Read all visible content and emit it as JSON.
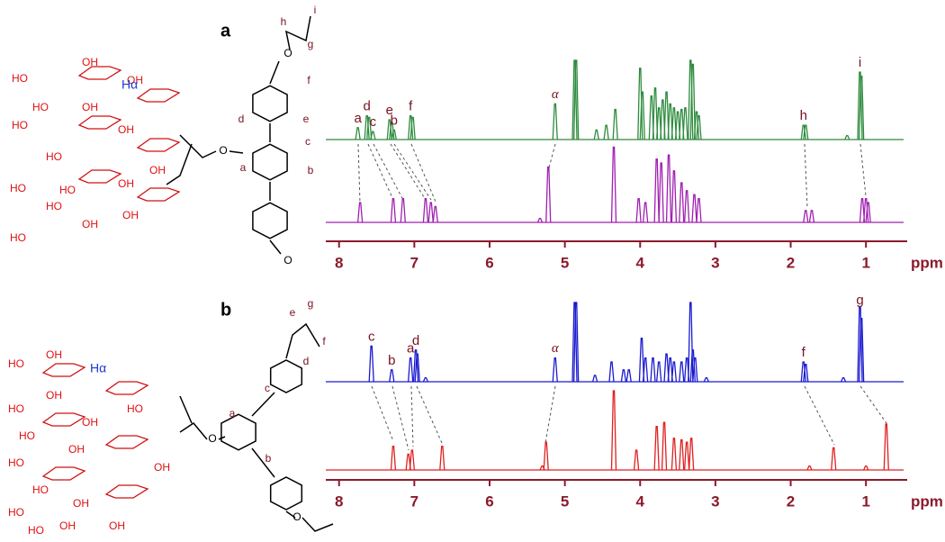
{
  "chart_data": [
    {
      "type": "spectrum",
      "panel_label": "a",
      "xlabel": "ppm",
      "xlim": [
        8.2,
        0.5
      ],
      "xticks": [
        8,
        7,
        6,
        5,
        4,
        3,
        2,
        1
      ],
      "ylim": [
        0,
        100
      ],
      "series": [
        {
          "color": "#2e8b3e",
          "x": [
            7.75,
            7.63,
            7.6,
            7.55,
            7.33,
            7.3,
            7.27,
            7.05,
            7.02,
            5.13,
            4.87,
            4.85,
            4.58,
            4.45,
            4.33,
            4.0,
            3.97,
            3.85,
            3.8,
            3.75,
            3.7,
            3.65,
            3.6,
            3.55,
            3.5,
            3.45,
            3.4,
            3.33,
            3.3,
            3.25,
            3.22,
            1.83,
            1.8,
            1.25,
            1.08,
            1.06
          ],
          "values": [
            15,
            30,
            28,
            10,
            25,
            22,
            12,
            30,
            28,
            45,
            100,
            100,
            12,
            18,
            38,
            90,
            60,
            55,
            65,
            40,
            50,
            60,
            45,
            40,
            35,
            38,
            40,
            100,
            95,
            35,
            30,
            18,
            18,
            5,
            85,
            80
          ],
          "annotations": [
            {
              "x": 7.75,
              "text": "a"
            },
            {
              "x": 7.63,
              "text": "d"
            },
            {
              "x": 7.55,
              "text": "c"
            },
            {
              "x": 7.33,
              "text": "e"
            },
            {
              "x": 7.27,
              "text": "b"
            },
            {
              "x": 7.05,
              "text": "f"
            },
            {
              "x": 5.13,
              "text": "α"
            },
            {
              "x": 1.83,
              "text": "h"
            },
            {
              "x": 1.08,
              "text": "i"
            }
          ]
        },
        {
          "color": "#a020b0",
          "x": [
            7.72,
            7.28,
            7.15,
            6.85,
            6.78,
            6.72,
            5.33,
            5.22,
            4.35,
            4.02,
            3.93,
            3.78,
            3.72,
            3.62,
            3.55,
            3.45,
            3.38,
            3.28,
            3.22,
            1.8,
            1.72,
            1.05,
            1.0,
            0.97
          ],
          "values": [
            25,
            30,
            30,
            30,
            25,
            20,
            5,
            70,
            95,
            30,
            25,
            80,
            75,
            85,
            65,
            50,
            40,
            35,
            30,
            15,
            15,
            30,
            30,
            25
          ],
          "annotations": []
        }
      ],
      "structure": {
        "texts": [
          "HO",
          "OH",
          "HO",
          "OH",
          "HO",
          "OH",
          "HO",
          "OH",
          "HO",
          "OH",
          "HO",
          "OH",
          "HO",
          "OH",
          "OH",
          "HO",
          "O",
          "O",
          "O",
          "a",
          "b",
          "c",
          "d",
          "e",
          "f",
          "g",
          "h",
          "i"
        ],
        "h_alpha": "Hα"
      }
    },
    {
      "type": "spectrum",
      "panel_label": "b",
      "xlabel": "ppm",
      "xlim": [
        8.2,
        0.5
      ],
      "xticks": [
        8,
        7,
        6,
        5,
        4,
        3,
        2,
        1
      ],
      "ylim": [
        0,
        100
      ],
      "series": [
        {
          "color": "#1a1ad0",
          "x": [
            7.57,
            7.3,
            7.05,
            6.98,
            6.96,
            6.85,
            5.13,
            4.87,
            4.85,
            4.6,
            4.38,
            4.22,
            4.15,
            3.98,
            3.93,
            3.83,
            3.75,
            3.65,
            3.6,
            3.55,
            3.45,
            3.38,
            3.33,
            3.3,
            3.27,
            3.12,
            1.83,
            1.8,
            1.3,
            1.08,
            1.06
          ],
          "values": [
            45,
            15,
            30,
            40,
            35,
            5,
            30,
            100,
            100,
            8,
            25,
            15,
            15,
            55,
            30,
            30,
            25,
            35,
            30,
            25,
            25,
            30,
            100,
            40,
            30,
            5,
            25,
            22,
            5,
            95,
            80
          ],
          "annotations": [
            {
              "x": 7.57,
              "text": "c"
            },
            {
              "x": 7.3,
              "text": "b"
            },
            {
              "x": 7.05,
              "text": "a"
            },
            {
              "x": 6.98,
              "text": "d"
            },
            {
              "x": 5.13,
              "text": "α"
            },
            {
              "x": 1.83,
              "text": "f"
            },
            {
              "x": 1.08,
              "text": "g"
            }
          ]
        },
        {
          "color": "#e02020",
          "x": [
            7.28,
            7.08,
            7.03,
            6.63,
            5.3,
            5.25,
            4.35,
            4.05,
            3.78,
            3.68,
            3.55,
            3.45,
            3.38,
            3.32,
            1.75,
            1.43,
            1.0,
            0.73
          ],
          "values": [
            30,
            20,
            25,
            30,
            5,
            35,
            100,
            25,
            55,
            60,
            40,
            38,
            35,
            40,
            5,
            28,
            5,
            58
          ],
          "annotations": []
        }
      ],
      "structure": {
        "texts": [
          "HO",
          "OH",
          "HO",
          "OH",
          "HO",
          "OH",
          "HO",
          "OH",
          "HO",
          "OH",
          "HO",
          "OH",
          "HO",
          "OH",
          "OH",
          "HO",
          "O",
          "O",
          "a",
          "b",
          "c",
          "d",
          "e",
          "f",
          "g"
        ],
        "h_alpha": "Hα"
      }
    }
  ]
}
